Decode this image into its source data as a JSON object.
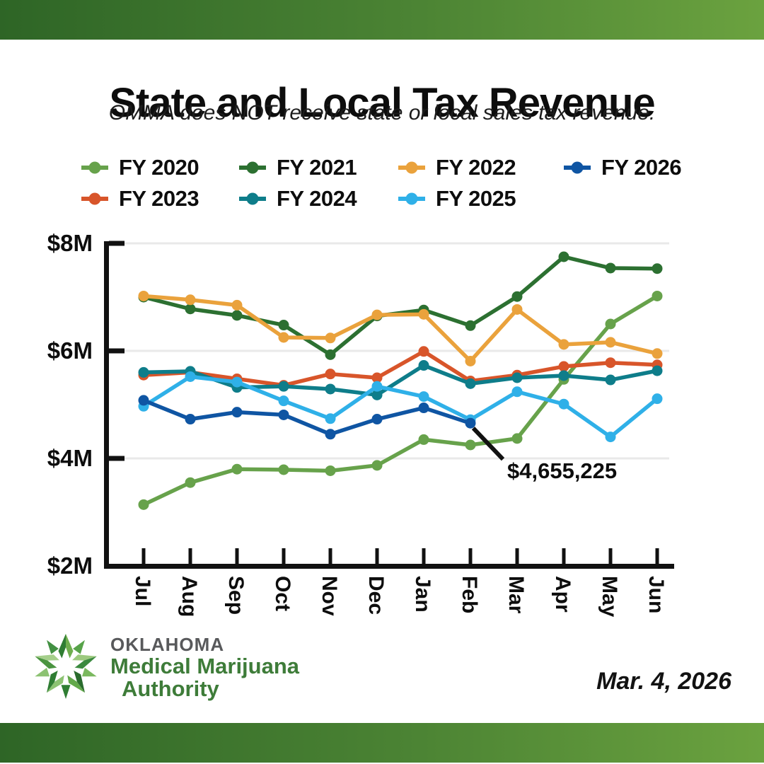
{
  "header": {
    "title": "State and Local Tax Revenue",
    "subtitle": "OMMA does NOT receive state or local sales tax revenue."
  },
  "legend": {
    "order": [
      "fy2020",
      "fy2021",
      "fy2022",
      "fy2026",
      "fy2023",
      "fy2024",
      "fy2025"
    ]
  },
  "chart_data": {
    "type": "line",
    "title": "State and Local Tax Revenue",
    "xlabel": "",
    "ylabel": "",
    "x": [
      "Jul",
      "Aug",
      "Sep",
      "Oct",
      "Nov",
      "Dec",
      "Jan",
      "Feb",
      "Mar",
      "Apr",
      "May",
      "Jun"
    ],
    "ylim": [
      2,
      8
    ],
    "grid": "horizontal",
    "legend_position": "top",
    "yticks": [
      {
        "label": "$8M",
        "value": 8
      },
      {
        "label": "$6M",
        "value": 6
      },
      {
        "label": "$4M",
        "value": 4
      },
      {
        "label": "$2M",
        "value": 2
      }
    ],
    "units": "millions of dollars",
    "series": [
      {
        "id": "fy2020",
        "name": "FY 2020",
        "color": "#67a24b",
        "values": [
          3.14,
          3.55,
          3.8,
          3.79,
          3.77,
          3.87,
          4.35,
          4.25,
          4.37,
          5.47,
          6.5,
          7.02
        ]
      },
      {
        "id": "fy2021",
        "name": "FY 2021",
        "color": "#2c7031",
        "values": [
          7.0,
          6.78,
          6.66,
          6.48,
          5.93,
          6.65,
          6.76,
          6.47,
          7.01,
          7.75,
          7.54,
          7.53
        ]
      },
      {
        "id": "fy2022",
        "name": "FY 2022",
        "color": "#eaa23c",
        "values": [
          7.02,
          6.95,
          6.85,
          6.25,
          6.24,
          6.67,
          6.68,
          5.81,
          6.77,
          6.12,
          6.16,
          5.95
        ]
      },
      {
        "id": "fy2023",
        "name": "FY 2023",
        "color": "#d8552a",
        "values": [
          5.55,
          5.6,
          5.48,
          5.36,
          5.57,
          5.5,
          5.99,
          5.44,
          5.55,
          5.71,
          5.78,
          5.74
        ]
      },
      {
        "id": "fy2024",
        "name": "FY 2024",
        "color": "#0e7d8a",
        "values": [
          5.6,
          5.62,
          5.32,
          5.34,
          5.29,
          5.18,
          5.73,
          5.39,
          5.5,
          5.54,
          5.46,
          5.63
        ]
      },
      {
        "id": "fy2025",
        "name": "FY 2025",
        "color": "#2fb0e8",
        "values": [
          4.97,
          5.52,
          5.42,
          5.07,
          4.74,
          5.34,
          5.15,
          4.72,
          5.24,
          5.01,
          4.4,
          5.11
        ]
      },
      {
        "id": "fy2026",
        "name": "FY 2026",
        "color": "#0f55a3",
        "values": [
          5.08,
          4.73,
          4.86,
          4.81,
          4.45,
          4.73,
          4.94,
          4.655225,
          null,
          null,
          null,
          null
        ]
      }
    ],
    "annotation": {
      "text": "$4,655,225",
      "series": "FY 2026",
      "month": "Feb",
      "month_index": 7,
      "value_m": 4.655225
    }
  },
  "footer": {
    "logo": {
      "line1": "OKLAHOMA",
      "line2": "Medical Marijuana",
      "line3": "Authority"
    },
    "date": "Mar. 4, 2026"
  },
  "colors": {
    "banner_gradient_left": "#2e6526",
    "banner_gradient_right": "#6ba23f",
    "grid_line": "#e9e9e9",
    "axis": "#111111",
    "logo_gray": "#58595b",
    "logo_green": "#3e7c39"
  }
}
